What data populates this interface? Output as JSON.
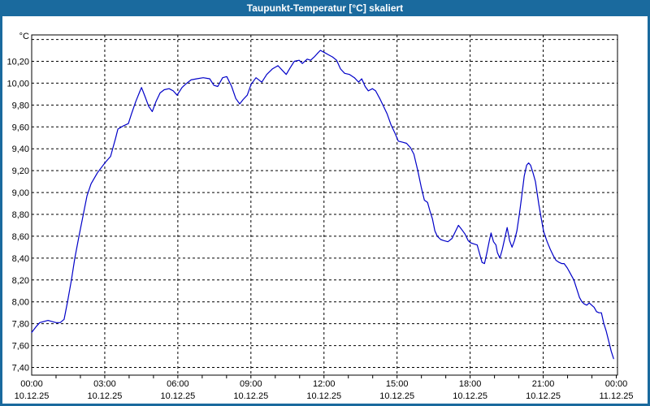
{
  "window": {
    "title": "Taupunkt-Temperatur [°C] skaliert",
    "title_bar_color": "#1A6A9E",
    "frame_color": "#1A6A9E",
    "background_color": "#FFFFFF"
  },
  "chart_data": {
    "type": "line",
    "title": "Taupunkt-Temperatur [°C] skaliert",
    "y_unit_label": "°C",
    "line_color": "#0000C8",
    "grid_color": "#000000",
    "grid_style": "dashed",
    "ylim": [
      7.33,
      10.44
    ],
    "xlim_hours": [
      0,
      24
    ],
    "y_grid_values": [
      7.4,
      7.6,
      7.8,
      8.0,
      8.2,
      8.4,
      8.6,
      8.8,
      9.0,
      9.2,
      9.4,
      9.6,
      9.8,
      10.0,
      10.2,
      10.4
    ],
    "y_ticks": [
      {
        "v": 10.2,
        "label": "10,20"
      },
      {
        "v": 10.0,
        "label": "10,00"
      },
      {
        "v": 9.8,
        "label": "9,80"
      },
      {
        "v": 9.6,
        "label": "9,60"
      },
      {
        "v": 9.4,
        "label": "9,40"
      },
      {
        "v": 9.2,
        "label": "9,20"
      },
      {
        "v": 9.0,
        "label": "9,00"
      },
      {
        "v": 8.8,
        "label": "8,80"
      },
      {
        "v": 8.6,
        "label": "8,60"
      },
      {
        "v": 8.4,
        "label": "8,40"
      },
      {
        "v": 8.2,
        "label": "8,20"
      },
      {
        "v": 8.0,
        "label": "8,00"
      },
      {
        "v": 7.8,
        "label": "7,80"
      },
      {
        "v": 7.6,
        "label": "7,60"
      },
      {
        "v": 7.4,
        "label": "7,40"
      }
    ],
    "x_ticks": [
      {
        "hour": 0,
        "time": "00:00",
        "date": "10.12.25"
      },
      {
        "hour": 3,
        "time": "03:00",
        "date": "10.12.25"
      },
      {
        "hour": 6,
        "time": "06:00",
        "date": "10.12.25"
      },
      {
        "hour": 9,
        "time": "09:00",
        "date": "10.12.25"
      },
      {
        "hour": 12,
        "time": "12:00",
        "date": "10.12.25"
      },
      {
        "hour": 15,
        "time": "15:00",
        "date": "10.12.25"
      },
      {
        "hour": 18,
        "time": "18:00",
        "date": "10.12.25"
      },
      {
        "hour": 21,
        "time": "21:00",
        "date": "10.12.25"
      },
      {
        "hour": 24,
        "time": "00:00",
        "date": "11.12.25"
      }
    ],
    "x_grid_hours": [
      3,
      6,
      9,
      12,
      15,
      18,
      21
    ],
    "x_minor_tick_every_hours": 1,
    "series": [
      {
        "name": "Taupunkt-Temperatur",
        "points": [
          [
            0.0,
            7.72
          ],
          [
            0.17,
            7.77
          ],
          [
            0.33,
            7.81
          ],
          [
            0.5,
            7.82
          ],
          [
            0.67,
            7.83
          ],
          [
            0.83,
            7.82
          ],
          [
            1.0,
            7.81
          ],
          [
            1.17,
            7.81
          ],
          [
            1.33,
            7.84
          ],
          [
            1.47,
            8.0
          ],
          [
            1.63,
            8.2
          ],
          [
            1.77,
            8.4
          ],
          [
            1.94,
            8.6
          ],
          [
            2.1,
            8.78
          ],
          [
            2.27,
            8.97
          ],
          [
            2.44,
            9.08
          ],
          [
            2.7,
            9.18
          ],
          [
            2.9,
            9.24
          ],
          [
            3.04,
            9.28
          ],
          [
            3.24,
            9.33
          ],
          [
            3.45,
            9.5
          ],
          [
            3.54,
            9.58
          ],
          [
            3.77,
            9.61
          ],
          [
            3.97,
            9.63
          ],
          [
            4.1,
            9.72
          ],
          [
            4.27,
            9.83
          ],
          [
            4.45,
            9.93
          ],
          [
            4.51,
            9.96
          ],
          [
            4.65,
            9.88
          ],
          [
            4.8,
            9.79
          ],
          [
            4.95,
            9.74
          ],
          [
            5.1,
            9.83
          ],
          [
            5.27,
            9.91
          ],
          [
            5.44,
            9.94
          ],
          [
            5.64,
            9.95
          ],
          [
            5.81,
            9.93
          ],
          [
            5.97,
            9.89
          ],
          [
            6.17,
            9.96
          ],
          [
            6.31,
            9.99
          ],
          [
            6.54,
            10.03
          ],
          [
            6.78,
            10.04
          ],
          [
            7.04,
            10.05
          ],
          [
            7.31,
            10.04
          ],
          [
            7.48,
            9.98
          ],
          [
            7.64,
            9.97
          ],
          [
            7.84,
            10.05
          ],
          [
            8.01,
            10.06
          ],
          [
            8.21,
            9.97
          ],
          [
            8.38,
            9.86
          ],
          [
            8.54,
            9.81
          ],
          [
            8.68,
            9.85
          ],
          [
            8.85,
            9.89
          ],
          [
            9.01,
            9.99
          ],
          [
            9.21,
            10.05
          ],
          [
            9.38,
            10.02
          ],
          [
            9.45,
            10.01
          ],
          [
            9.65,
            10.08
          ],
          [
            9.88,
            10.13
          ],
          [
            10.11,
            10.16
          ],
          [
            10.28,
            10.12
          ],
          [
            10.45,
            10.08
          ],
          [
            10.61,
            10.14
          ],
          [
            10.78,
            10.2
          ],
          [
            10.98,
            10.21
          ],
          [
            11.11,
            10.18
          ],
          [
            11.31,
            10.22
          ],
          [
            11.45,
            10.21
          ],
          [
            11.6,
            10.24
          ],
          [
            11.72,
            10.27
          ],
          [
            11.85,
            10.3
          ],
          [
            12.02,
            10.28
          ],
          [
            12.18,
            10.26
          ],
          [
            12.35,
            10.24
          ],
          [
            12.52,
            10.21
          ],
          [
            12.68,
            10.13
          ],
          [
            12.85,
            10.09
          ],
          [
            13.05,
            10.08
          ],
          [
            13.25,
            10.05
          ],
          [
            13.42,
            10.01
          ],
          [
            13.55,
            10.04
          ],
          [
            13.69,
            9.97
          ],
          [
            13.82,
            9.93
          ],
          [
            13.99,
            9.95
          ],
          [
            14.12,
            9.93
          ],
          [
            14.29,
            9.86
          ],
          [
            14.42,
            9.8
          ],
          [
            14.59,
            9.72
          ],
          [
            14.75,
            9.62
          ],
          [
            14.92,
            9.54
          ],
          [
            15.05,
            9.47
          ],
          [
            15.22,
            9.46
          ],
          [
            15.39,
            9.45
          ],
          [
            15.55,
            9.41
          ],
          [
            15.69,
            9.35
          ],
          [
            15.85,
            9.2
          ],
          [
            15.99,
            9.05
          ],
          [
            16.12,
            8.93
          ],
          [
            16.25,
            8.91
          ],
          [
            16.35,
            8.83
          ],
          [
            16.45,
            8.76
          ],
          [
            16.55,
            8.65
          ],
          [
            16.65,
            8.6
          ],
          [
            16.79,
            8.57
          ],
          [
            16.92,
            8.56
          ],
          [
            17.09,
            8.55
          ],
          [
            17.26,
            8.58
          ],
          [
            17.39,
            8.64
          ],
          [
            17.52,
            8.7
          ],
          [
            17.66,
            8.66
          ],
          [
            17.79,
            8.62
          ],
          [
            17.92,
            8.56
          ],
          [
            18.02,
            8.54
          ],
          [
            18.16,
            8.53
          ],
          [
            18.29,
            8.52
          ],
          [
            18.39,
            8.44
          ],
          [
            18.49,
            8.36
          ],
          [
            18.59,
            8.35
          ],
          [
            18.69,
            8.45
          ],
          [
            18.79,
            8.56
          ],
          [
            18.86,
            8.63
          ],
          [
            18.96,
            8.55
          ],
          [
            19.06,
            8.52
          ],
          [
            19.12,
            8.45
          ],
          [
            19.22,
            8.4
          ],
          [
            19.32,
            8.48
          ],
          [
            19.42,
            8.58
          ],
          [
            19.52,
            8.68
          ],
          [
            19.62,
            8.56
          ],
          [
            19.72,
            8.5
          ],
          [
            19.82,
            8.56
          ],
          [
            19.92,
            8.65
          ],
          [
            20.02,
            8.8
          ],
          [
            20.12,
            8.97
          ],
          [
            20.22,
            9.15
          ],
          [
            20.32,
            9.25
          ],
          [
            20.4,
            9.27
          ],
          [
            20.48,
            9.25
          ],
          [
            20.58,
            9.18
          ],
          [
            20.68,
            9.1
          ],
          [
            20.82,
            8.89
          ],
          [
            20.92,
            8.76
          ],
          [
            21.02,
            8.64
          ],
          [
            21.16,
            8.55
          ],
          [
            21.29,
            8.48
          ],
          [
            21.42,
            8.42
          ],
          [
            21.52,
            8.38
          ],
          [
            21.66,
            8.36
          ],
          [
            21.76,
            8.35
          ],
          [
            21.86,
            8.35
          ],
          [
            21.99,
            8.31
          ],
          [
            22.09,
            8.27
          ],
          [
            22.26,
            8.2
          ],
          [
            22.39,
            8.11
          ],
          [
            22.49,
            8.04
          ],
          [
            22.59,
            8.0
          ],
          [
            22.69,
            7.98
          ],
          [
            22.79,
            7.97
          ],
          [
            22.89,
            7.99
          ],
          [
            22.99,
            7.97
          ],
          [
            23.09,
            7.95
          ],
          [
            23.19,
            7.91
          ],
          [
            23.29,
            7.9
          ],
          [
            23.39,
            7.9
          ],
          [
            23.49,
            7.8
          ],
          [
            23.59,
            7.73
          ],
          [
            23.69,
            7.64
          ],
          [
            23.79,
            7.55
          ],
          [
            23.89,
            7.48
          ]
        ]
      }
    ]
  }
}
